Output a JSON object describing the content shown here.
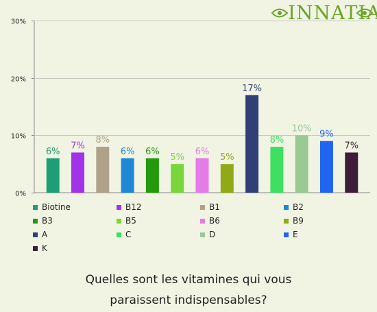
{
  "logo": {
    "text": "INNATIA"
  },
  "question": {
    "line1": "Quelles sont les vitamines qui vous",
    "line2": "paraissent indispensables?"
  },
  "chart_data": {
    "type": "bar",
    "title": "Quelles sont les vitamines qui vous paraissent indispensables?",
    "categories": [
      "Biotine",
      "B12",
      "B1",
      "B2",
      "B3",
      "B5",
      "B6",
      "B9",
      "A",
      "C",
      "D",
      "E",
      "K"
    ],
    "values": [
      6,
      7,
      8,
      6,
      6,
      5,
      6,
      5,
      17,
      8,
      10,
      9,
      7
    ],
    "value_labels": [
      "6%",
      "7%",
      "8%",
      "6%",
      "6%",
      "5%",
      "6%",
      "5%",
      "17%",
      "8%",
      "10%",
      "9%",
      "7%"
    ],
    "colors": [
      "#1f9e76",
      "#a233e8",
      "#b0a28a",
      "#1e88d6",
      "#249a0b",
      "#7ad63d",
      "#e47be7",
      "#90a916",
      "#303f75",
      "#3fdf62",
      "#9bc993",
      "#2064ef",
      "#3e1d3b"
    ],
    "ylim": [
      0,
      30
    ],
    "yticks": [
      0,
      10,
      20,
      30
    ],
    "ytick_labels": [
      "0%",
      "10%",
      "20%",
      "30%"
    ],
    "grid": true,
    "legend_position": "bottom"
  }
}
